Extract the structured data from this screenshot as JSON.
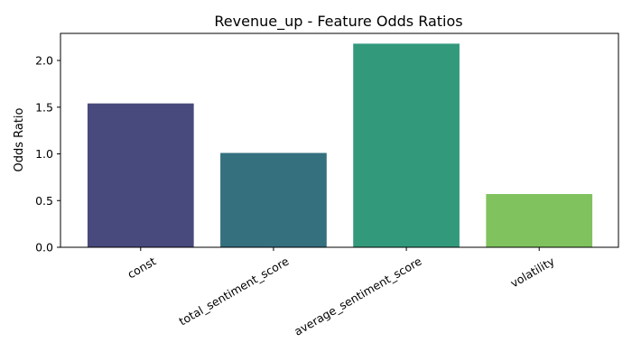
{
  "chart_data": {
    "type": "bar",
    "title": "Revenue_up - Feature Odds Ratios",
    "xlabel": "",
    "ylabel": "Odds Ratio",
    "categories": [
      "const",
      "total_sentiment_score",
      "average_sentiment_score",
      "volatility"
    ],
    "values": [
      1.54,
      1.01,
      2.18,
      0.57
    ],
    "colors": [
      "#48497c",
      "#35707f",
      "#32997b",
      "#80c25e"
    ],
    "ylim": [
      0,
      2.29
    ],
    "yticks": [
      0.0,
      0.5,
      1.0,
      1.5,
      2.0
    ],
    "ytick_labels": [
      "0.0",
      "0.5",
      "1.0",
      "1.5",
      "2.0"
    ],
    "xtick_rotation": 30,
    "grid": false,
    "legend": "none"
  }
}
